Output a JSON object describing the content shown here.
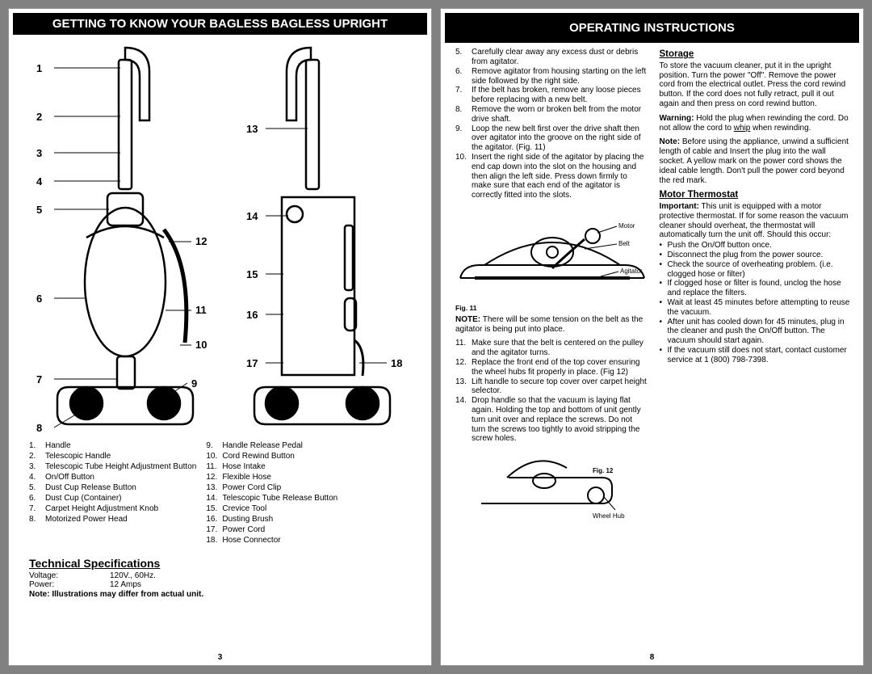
{
  "colors": {
    "page_bg": "#ffffff",
    "body_bg": "#818181",
    "title_bg": "#000000",
    "title_fg": "#ffffff",
    "text": "#000000"
  },
  "typography": {
    "body_font": "Arial, Helvetica, sans-serif",
    "body_size_pt": 10,
    "title_size_pt": 15,
    "subhead_size_pt": 12
  },
  "leftPage": {
    "title": "GETTING TO KNOW  YOUR BAGLESS BAGLESS UPRIGHT",
    "callouts_left": [
      "1",
      "2",
      "3",
      "4",
      "5",
      "6",
      "7",
      "8",
      "9",
      "10",
      "11",
      "12"
    ],
    "callouts_right": [
      "13",
      "14",
      "15",
      "16",
      "17",
      "18"
    ],
    "parts_col1": [
      {
        "n": "1.",
        "t": "Handle"
      },
      {
        "n": "2.",
        "t": "Telescopic Handle"
      },
      {
        "n": "3.",
        "t": "Telescopic Tube Height Adjustment Button"
      },
      {
        "n": "4.",
        "t": "On/Off Button"
      },
      {
        "n": "5.",
        "t": "Dust Cup Release Button"
      },
      {
        "n": "6.",
        "t": "Dust Cup (Container)"
      },
      {
        "n": "7.",
        "t": "Carpet Height Adjustment Knob"
      },
      {
        "n": "8.",
        "t": "Motorized Power Head"
      }
    ],
    "parts_col2": [
      {
        "n": "9.",
        "t": "Handle Release Pedal"
      },
      {
        "n": "10.",
        "t": "Cord Rewind Button"
      },
      {
        "n": "11.",
        "t": "Hose Intake"
      },
      {
        "n": "12.",
        "t": "Flexible Hose"
      },
      {
        "n": "13.",
        "t": "Power Cord Clip"
      },
      {
        "n": "14.",
        "t": "Telescopic Tube Release Button"
      },
      {
        "n": "15.",
        "t": "Crevice Tool"
      },
      {
        "n": "16.",
        "t": "Dusting Brush"
      },
      {
        "n": "17.",
        "t": "Power Cord"
      },
      {
        "n": "18.",
        "t": "Hose Connector"
      }
    ],
    "tech_title": "Technical Specifications",
    "tech_rows": [
      {
        "label": "Voltage:",
        "value": "120V.,   60Hz."
      },
      {
        "label": "Power:",
        "value": "12 Amps"
      }
    ],
    "tech_note": "Note: Illustrations may differ from actual unit.",
    "page_number": "3"
  },
  "rightPage": {
    "title": "OPERATING INSTRUCTIONS",
    "steps_a": [
      {
        "n": "5.",
        "t": "Carefully clear away any excess dust or debris from agitator."
      },
      {
        "n": "6.",
        "t": "Remove agitator from housing starting on the left side followed by the right side."
      },
      {
        "n": "7.",
        "t": "If the belt has broken, remove any loose pieces before replacing with a new belt."
      },
      {
        "n": "8.",
        "t": "Remove the worn or broken belt from the motor drive shaft."
      },
      {
        "n": "9.",
        "t": "Loop the new belt first over the drive shaft then over agitator into the groove on the right side of the agitator. (Fig. 11)"
      },
      {
        "n": "10.",
        "t": "Insert the right side of the agitator by placing the end cap down into the slot on the housing and then align the left side. Press down firmly to make sure that each end of the agitator is correctly fitted into the slots."
      }
    ],
    "fig11_labels": {
      "motor": "Motor",
      "belt": "Belt",
      "agitator": "Agitator",
      "caption": "Fig. 11"
    },
    "note1_bold": "NOTE:",
    "note1_text": " There will be some tension on the belt as the agitator is being put into place.",
    "steps_b": [
      {
        "n": "11.",
        "t": "Make sure that the belt is centered on the pulley and the agitator turns."
      },
      {
        "n": "12.",
        "t": "Replace the front end of the top cover ensuring the wheel hubs fit properly in place. (Fig 12)"
      },
      {
        "n": "13.",
        "t": "Lift handle to secure top cover over carpet height selector."
      },
      {
        "n": "14.",
        "t": "Drop handle so that the vacuum is laying flat again. Holding the top and bottom of unit gently turn unit over and replace the screws. Do not turn the screws too tightly to avoid stripping the screw holes."
      }
    ],
    "fig12_labels": {
      "caption": "Fig. 12",
      "wheelhub": "Wheel Hub"
    },
    "storage_head": "Storage",
    "storage_text": "To store the vacuum cleaner, put it in the upright position.  Turn the power \"Off\". Remove the power cord from the electrical outlet.  Press the cord rewind button. If the cord does not fully retract, pull it out again and then press on cord rewind button.",
    "warning_bold": "Warning:",
    "warning_text": " Hold the plug  when rewinding the cord.  Do not allow the cord to whip when rewinding.",
    "note2_bold": "Note:",
    "note2_text": " Before using the appliance, unwind a sufficient length of cable and Insert the plug into the wall socket.  A yellow mark on the power cord shows the ideal cable length.  Don't pull the power cord beyond the red mark.",
    "motor_head": "Motor Thermostat",
    "important_bold": "Important:",
    "important_text": "   This unit is equipped with a motor protective thermostat.  If for some reason the vacuum cleaner should overheat,  the thermostat will automatically turn the unit off.  Should this occur:",
    "bullets": [
      "Push the On/Off button once.",
      "Disconnect the plug from the power source.",
      "Check the source of overheating problem. (i.e. clogged hose or filter)",
      "If clogged hose or filter is found, unclog the hose and replace the filters.",
      "Wait at least 45 minutes before attempting to reuse the vacuum.",
      "After unit has cooled down for 45 minutes, plug in the cleaner and push the On/Off button. The vacuum should start again.",
      "If the vacuum still does not start, contact customer service at 1 (800) 798-7398."
    ],
    "page_number": "8"
  }
}
